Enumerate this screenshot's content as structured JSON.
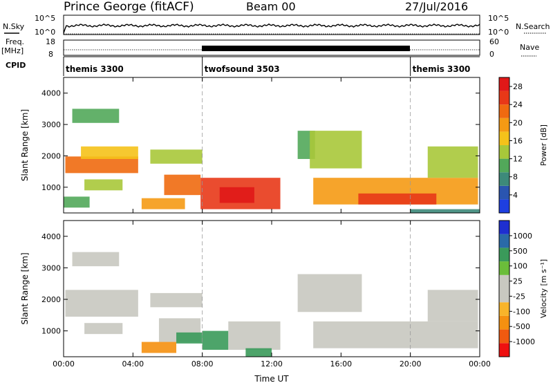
{
  "header": {
    "station": "Prince George (fitACF)",
    "beam": "Beam 00",
    "date": "27/Jul/2016"
  },
  "strip": {
    "nsky_label": "N.Sky",
    "nsky_ticks": [
      "10^5",
      "10^0"
    ],
    "nsky_right_ticks": [
      "10^5",
      "10^0"
    ],
    "nsearch_label": "N.Search",
    "freq_label": "Freq.",
    "freq_unit": "[MHz]",
    "freq_ticks": [
      "18",
      "8"
    ],
    "nave_ticks": [
      "60",
      "0"
    ],
    "nave_label": "Nave",
    "cpid_label": "CPID",
    "cpid_segments": [
      {
        "name": "themis 3300",
        "start": 0,
        "end": 8
      },
      {
        "name": "twofsound 3503",
        "start": 8,
        "end": 20
      },
      {
        "name": "themis 3300",
        "start": 20,
        "end": 24
      }
    ]
  },
  "colors": {
    "power": [
      "#1e3fe0",
      "#2a55b0",
      "#3d8a7a",
      "#52a85a",
      "#a8c83a",
      "#f5c21a",
      "#f59a14",
      "#f06a10",
      "#e83818",
      "#e01818"
    ],
    "velocity": [
      "#ee1010",
      "#f05a10",
      "#f59010",
      "#f8b42a",
      "#c8c8c0",
      "#c8c8c0",
      "#6bbd3a",
      "#3a9a5a",
      "#2a6aa8",
      "#1e2fd0"
    ]
  },
  "chart_data": [
    {
      "type": "heatmap",
      "name": "Power",
      "xlabel": "",
      "ylabel": "Slant Range [km]",
      "xlim": [
        0,
        24
      ],
      "ylim": [
        180,
        4500
      ],
      "yticks": [
        "1000",
        "2000",
        "3000",
        "4000"
      ],
      "colorbar": {
        "label": "Power [dB]",
        "ticks": [
          "4",
          "8",
          "12",
          "16",
          "20",
          "24",
          "28"
        ],
        "range": [
          0,
          30
        ]
      },
      "regions": [
        {
          "x": [
            0.1,
            4.3
          ],
          "y": [
            1450,
            1980
          ],
          "value": 22
        },
        {
          "x": [
            1.0,
            4.3
          ],
          "y": [
            1900,
            2300
          ],
          "value": 15
        },
        {
          "x": [
            0.5,
            3.2
          ],
          "y": [
            3050,
            3500
          ],
          "value": 11
        },
        {
          "x": [
            1.2,
            3.4
          ],
          "y": [
            900,
            1250
          ],
          "value": 12
        },
        {
          "x": [
            0.0,
            1.5
          ],
          "y": [
            350,
            700
          ],
          "value": 9
        },
        {
          "x": [
            5.0,
            8.0
          ],
          "y": [
            1750,
            2200
          ],
          "value": 13
        },
        {
          "x": [
            5.8,
            7.9
          ],
          "y": [
            750,
            1400
          ],
          "value": 23
        },
        {
          "x": [
            4.5,
            7.0
          ],
          "y": [
            300,
            650
          ],
          "value": 20
        },
        {
          "x": [
            7.9,
            12.5
          ],
          "y": [
            300,
            1300
          ],
          "value": 24
        },
        {
          "x": [
            9.0,
            11.0
          ],
          "y": [
            500,
            1000
          ],
          "value": 27
        },
        {
          "x": [
            13.5,
            14.5
          ],
          "y": [
            1900,
            2800
          ],
          "value": 10
        },
        {
          "x": [
            14.2,
            17.2
          ],
          "y": [
            1600,
            2800
          ],
          "value": 12
        },
        {
          "x": [
            14.4,
            23.9
          ],
          "y": [
            450,
            1300
          ],
          "value": 20
        },
        {
          "x": [
            17.0,
            21.5
          ],
          "y": [
            450,
            800
          ],
          "value": 26
        },
        {
          "x": [
            21.0,
            23.9
          ],
          "y": [
            1300,
            2300
          ],
          "value": 14
        },
        {
          "x": [
            20.0,
            24.0
          ],
          "y": [
            180,
            300
          ],
          "value": 6
        }
      ]
    },
    {
      "type": "heatmap",
      "name": "Velocity",
      "xlabel": "Time UT",
      "ylabel": "Slant Range [km]",
      "xlim": [
        0,
        24
      ],
      "ylim": [
        180,
        4500
      ],
      "xticks": [
        "00:00",
        "04:00",
        "08:00",
        "12:00",
        "16:00",
        "20:00",
        "00:00"
      ],
      "yticks": [
        "1000",
        "2000",
        "3000",
        "4000"
      ],
      "colorbar": {
        "label": "Velocity [m s⁻¹]",
        "ticks": [
          "1000",
          "500",
          "100",
          "25",
          "-25",
          "-100",
          "-500",
          "-1000"
        ]
      },
      "regions": [
        {
          "x": [
            0.1,
            4.3
          ],
          "y": [
            1450,
            2300
          ],
          "value": 0
        },
        {
          "x": [
            0.5,
            3.2
          ],
          "y": [
            3050,
            3500
          ],
          "value": 0
        },
        {
          "x": [
            1.2,
            3.4
          ],
          "y": [
            900,
            1250
          ],
          "value": 0
        },
        {
          "x": [
            5.0,
            8.0
          ],
          "y": [
            1750,
            2200
          ],
          "value": 0
        },
        {
          "x": [
            5.5,
            7.9
          ],
          "y": [
            650,
            1400
          ],
          "value": 0
        },
        {
          "x": [
            4.5,
            6.5
          ],
          "y": [
            300,
            650
          ],
          "value": -120
        },
        {
          "x": [
            6.5,
            8.0
          ],
          "y": [
            600,
            950
          ],
          "value": 150
        },
        {
          "x": [
            8.0,
            9.5
          ],
          "y": [
            400,
            1000
          ],
          "value": 130
        },
        {
          "x": [
            9.5,
            12.5
          ],
          "y": [
            400,
            1300
          ],
          "value": 0
        },
        {
          "x": [
            10.5,
            12.0
          ],
          "y": [
            180,
            450
          ],
          "value": 150
        },
        {
          "x": [
            13.5,
            17.2
          ],
          "y": [
            1600,
            2800
          ],
          "value": 0
        },
        {
          "x": [
            14.4,
            23.9
          ],
          "y": [
            450,
            1300
          ],
          "value": 0
        },
        {
          "x": [
            21.0,
            23.9
          ],
          "y": [
            1300,
            2300
          ],
          "value": 0
        }
      ]
    }
  ]
}
